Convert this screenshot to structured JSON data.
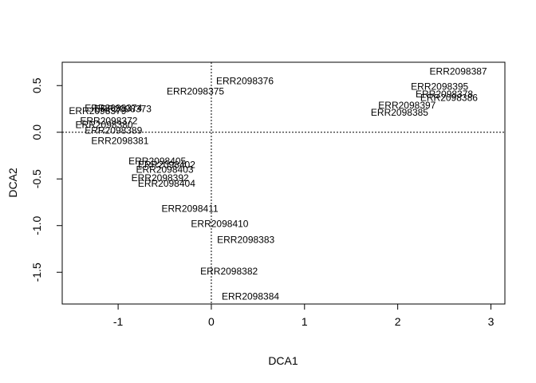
{
  "chart_data": {
    "type": "scatter",
    "title": "",
    "xlabel": "DCA1",
    "ylabel": "DCA2",
    "xlim": [
      -1.6,
      3.15
    ],
    "ylim": [
      -1.84,
      0.75
    ],
    "x_ticks": [
      -1,
      0,
      1,
      2,
      3
    ],
    "y_ticks": [
      -1.5,
      -1.0,
      -0.5,
      0.0,
      0.5
    ],
    "x_tick_labels": [
      "-1",
      "0",
      "1",
      "2",
      "3"
    ],
    "y_tick_labels": [
      "-1.5",
      "-1.0",
      "-0.5",
      "0.0",
      "0.5"
    ],
    "reference_lines": {
      "x": 0,
      "y": 0,
      "style": "dotted"
    },
    "grid": false,
    "legend": "none",
    "points": [
      {
        "label": "ERR2098387",
        "x": 2.65,
        "y": 0.65
      },
      {
        "label": "ERR2098395",
        "x": 2.45,
        "y": 0.49
      },
      {
        "label": "ERR2098378",
        "x": 2.5,
        "y": 0.41
      },
      {
        "label": "ERR2098386",
        "x": 2.55,
        "y": 0.37
      },
      {
        "label": "ERR2098397",
        "x": 2.1,
        "y": 0.29
      },
      {
        "label": "ERR2098385",
        "x": 2.02,
        "y": 0.21
      },
      {
        "label": "ERR2098376",
        "x": 0.36,
        "y": 0.55
      },
      {
        "label": "ERR2098375",
        "x": -0.17,
        "y": 0.44
      },
      {
        "label": "ERR2098374",
        "x": -1.05,
        "y": 0.26
      },
      {
        "label": "ERR2098373",
        "x": -0.95,
        "y": 0.25
      },
      {
        "label": "ERR2098379",
        "x": -1.22,
        "y": 0.23
      },
      {
        "label": "ERR2098372",
        "x": -1.1,
        "y": 0.12
      },
      {
        "label": "ERR2098380",
        "x": -1.15,
        "y": 0.08
      },
      {
        "label": "ERR2098389",
        "x": -1.05,
        "y": 0.02
      },
      {
        "label": "ERR2098381",
        "x": -0.98,
        "y": -0.09
      },
      {
        "label": "ERR2098405",
        "x": -0.58,
        "y": -0.31
      },
      {
        "label": "ERR2098402",
        "x": -0.48,
        "y": -0.35
      },
      {
        "label": "ERR2098403",
        "x": -0.5,
        "y": -0.4
      },
      {
        "label": "ERR2098392",
        "x": -0.55,
        "y": -0.49
      },
      {
        "label": "ERR2098404",
        "x": -0.48,
        "y": -0.55
      },
      {
        "label": "ERR2098411",
        "x": -0.23,
        "y": -0.82
      },
      {
        "label": "ERR2098410",
        "x": 0.09,
        "y": -0.98
      },
      {
        "label": "ERR2098383",
        "x": 0.37,
        "y": -1.15
      },
      {
        "label": "ERR2098382",
        "x": 0.19,
        "y": -1.49
      },
      {
        "label": "ERR2098384",
        "x": 0.42,
        "y": -1.76
      }
    ]
  }
}
